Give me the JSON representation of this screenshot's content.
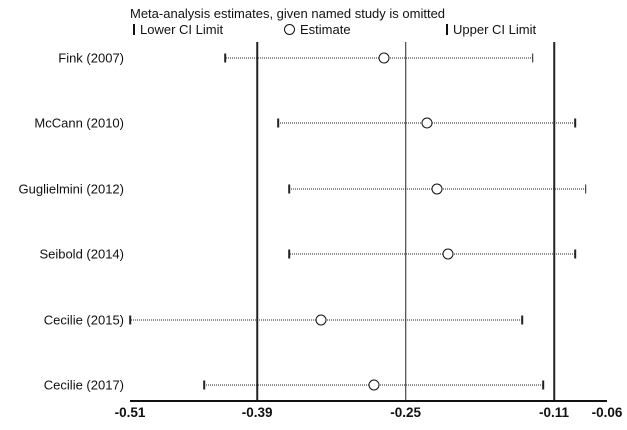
{
  "chart_data": {
    "type": "scatter",
    "subtype": "forest-sensitivity",
    "title": "Meta-analysis estimates, given named study is omitted",
    "legend": {
      "lower": "Lower CI Limit",
      "estimate": "Estimate",
      "upper": "Upper CI Limit",
      "position": "top"
    },
    "series": [
      {
        "name": "Fink (2007)",
        "lower": -0.42,
        "estimate": -0.27,
        "upper": -0.13
      },
      {
        "name": "McCann (2010)",
        "lower": -0.37,
        "estimate": -0.23,
        "upper": -0.09
      },
      {
        "name": "Guglielmini (2012)",
        "lower": -0.36,
        "estimate": -0.22,
        "upper": -0.08
      },
      {
        "name": "Seibold (2014)",
        "lower": -0.36,
        "estimate": -0.21,
        "upper": -0.09
      },
      {
        "name": "Cecilie (2015)",
        "lower": -0.51,
        "estimate": -0.33,
        "upper": -0.14
      },
      {
        "name": "Cecilie (2017)",
        "lower": -0.44,
        "estimate": -0.28,
        "upper": -0.12
      }
    ],
    "ref_lines": [
      -0.39,
      -0.25,
      -0.11
    ],
    "xlim": [
      -0.51,
      -0.06
    ],
    "x_ticks": [
      -0.51,
      -0.39,
      -0.25,
      -0.11,
      -0.06
    ],
    "tick_labels": [
      "-0.51",
      "-0.39",
      "-0.25",
      "-0.11",
      "-0.06"
    ],
    "xlabel": "",
    "ylabel": "",
    "grid": "vertical-reference-lines-only"
  }
}
